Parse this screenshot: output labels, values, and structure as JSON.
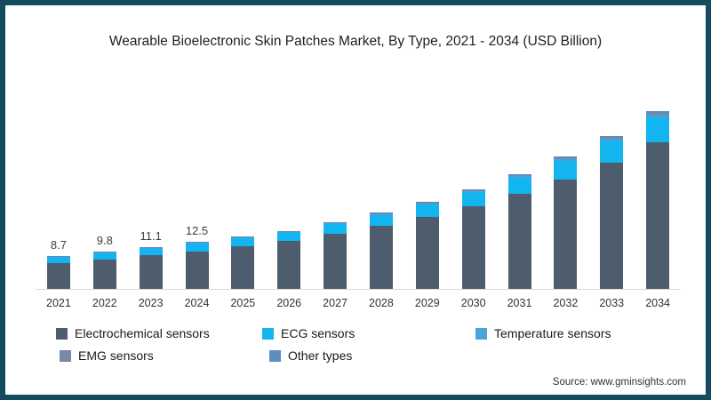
{
  "frame": {
    "border_color": "#154b61",
    "background": "#ffffff"
  },
  "title": "Wearable Bioelectronic Skin Patches Market, By Type, 2021 - 2034 (USD Billion)",
  "source_text": "Source: www.gminsights.com",
  "chart_data": {
    "type": "bar",
    "stacked": true,
    "unit": "USD Billion",
    "title": "Wearable Bioelectronic Skin Patches Market, By Type, 2021 - 2034 (USD Billion)",
    "xlabel": "",
    "ylabel": "",
    "grid": false,
    "y_axis_shown": false,
    "legend_position": "bottom",
    "categories": [
      "2021",
      "2022",
      "2023",
      "2024",
      "2025",
      "2026",
      "2027",
      "2028",
      "2029",
      "2030",
      "2031",
      "2032",
      "2033",
      "2034"
    ],
    "series": [
      {
        "name": "Electrochemical sensors",
        "color": "#4e5d6d",
        "values": [
          6.8,
          7.8,
          8.9,
          10.0,
          11.2,
          12.7,
          14.5,
          16.6,
          19.0,
          21.8,
          25.1,
          29.0,
          33.5,
          38.9
        ]
      },
      {
        "name": "ECG sensors",
        "color": "#13b5f0",
        "values": [
          1.6,
          1.7,
          1.9,
          2.1,
          2.3,
          2.3,
          2.6,
          3.0,
          3.4,
          3.8,
          4.4,
          5.0,
          5.7,
          6.5
        ]
      },
      {
        "name": "Temperature sensors",
        "color": "#4aa3db",
        "values": [
          0.1,
          0.1,
          0.1,
          0.1,
          0.1,
          0.1,
          0.2,
          0.2,
          0.2,
          0.3,
          0.3,
          0.4,
          0.4,
          0.5
        ]
      },
      {
        "name": "EMG sensors",
        "color": "#7888a7",
        "values": [
          0.1,
          0.1,
          0.1,
          0.1,
          0.1,
          0.1,
          0.1,
          0.1,
          0.2,
          0.2,
          0.2,
          0.3,
          0.3,
          0.4
        ]
      },
      {
        "name": "Other types",
        "color": "#5c8dc0",
        "values": [
          0.1,
          0.1,
          0.1,
          0.2,
          0.2,
          0.2,
          0.2,
          0.3,
          0.3,
          0.3,
          0.4,
          0.4,
          0.6,
          0.7
        ]
      }
    ],
    "totals": [
      8.7,
      9.8,
      11.1,
      12.5,
      13.9,
      15.4,
      17.6,
      20.2,
      23.1,
      26.4,
      30.4,
      35.1,
      40.5,
      47.0
    ],
    "bar_labels": [
      "8.7",
      "9.8",
      "11.1",
      "12.5",
      "",
      "",
      "",
      "",
      "",
      "",
      "",
      "",
      "",
      ""
    ]
  }
}
